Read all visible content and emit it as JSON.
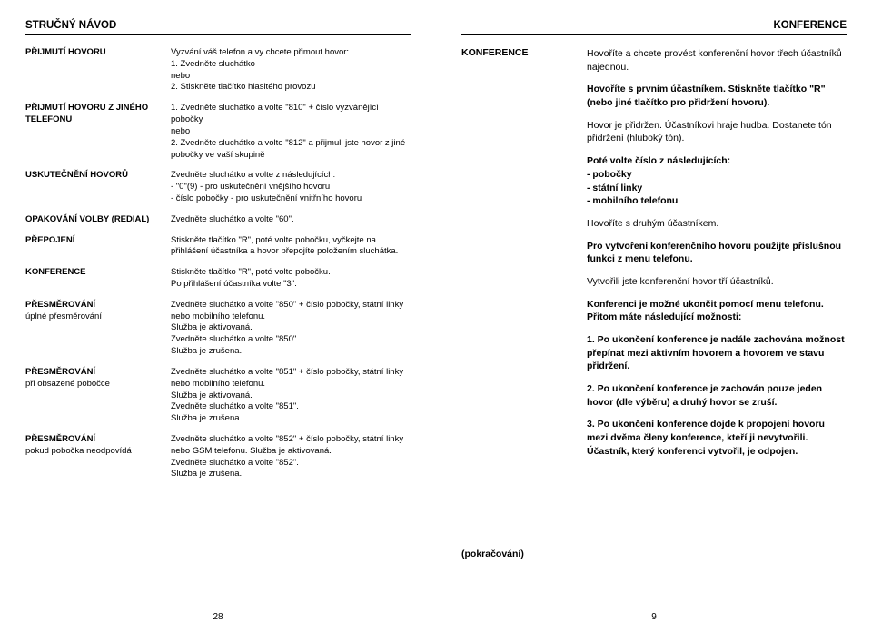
{
  "left": {
    "header": "STRUČNÝ NÁVOD",
    "rows": [
      {
        "label": "PŘIJMUTÍ HOVORU",
        "sub": "",
        "content": "Vyzvání váš telefon a vy chcete přimout hovor:\n1. Zvedněte sluchátko\nnebo\n2. Stiskněte tlačítko hlasitého provozu"
      },
      {
        "label": "PŘIJMUTÍ HOVORU Z JINÉHO TELEFONU",
        "sub": "",
        "content": "1. Zvedněte sluchátko a volte \"810\" + číslo vyzvánějící pobočky\nnebo\n2. Zvedněte sluchátko a volte \"812\" a přijmuli jste hovor z jiné pobočky ve vaší skupině"
      },
      {
        "label": "USKUTEČNĚNÍ HOVORŮ",
        "sub": "",
        "content": "Zvedněte sluchátko a volte z následujících:\n- \"0\"(9) - pro uskutečnění vnějšího hovoru\n- číslo pobočky - pro uskutečnění vnitřního hovoru"
      },
      {
        "label": "OPAKOVÁNÍ VOLBY (REDIAL)",
        "sub": "",
        "content": "Zvedněte sluchátko a volte \"60\"."
      },
      {
        "label": "PŘEPOJENÍ",
        "sub": "",
        "content": "Stiskněte tlačítko \"R\", poté volte pobočku, vyčkejte na přihlášení účastníka a hovor přepojíte položením sluchátka."
      },
      {
        "label": "KONFERENCE",
        "sub": "",
        "content": "Stiskněte tlačítko \"R\", poté volte pobočku.\nPo přihlášení účastníka volte \"3\"."
      },
      {
        "label": "PŘESMĚROVÁNÍ",
        "sub": "úplné přesměrování",
        "content": "Zvedněte sluchátko a volte \"850\" + číslo pobočky, státní linky nebo mobilního telefonu.\nSlužba je aktivovaná.\nZvedněte sluchátko a volte \"850\".\nSlužba je zrušena."
      },
      {
        "label": "PŘESMĚROVÁNÍ",
        "sub": "při obsazené pobočce",
        "content": "Zvedněte sluchátko a volte \"851\" + číslo pobočky, státní linky nebo mobilního telefonu.\nSlužba je aktivovaná.\nZvedněte sluchátko a volte \"851\".\nSlužba je zrušena."
      },
      {
        "label": "PŘESMĚROVÁNÍ",
        "sub": "pokud pobočka neodpovídá",
        "content": "Zvedněte sluchátko a volte \"852\" + číslo pobočky, státní linky nebo GSM telefonu. Služba je aktivovaná.\nZvedněte sluchátko a volte \"852\".\nSlužba je zrušena."
      }
    ],
    "pagenum": "28"
  },
  "right": {
    "header": "KONFERENCE",
    "section_label": "KONFERENCE",
    "paras": [
      {
        "text": "Hovoříte a chcete provést konferenční hovor třech účastníků najednou.",
        "bold": false
      },
      {
        "text": "Hovoříte s prvním účastníkem. Stiskněte tlačítko \"R\" (nebo jiné tlačítko pro přidržení hovoru).",
        "bold": true
      },
      {
        "text": "Hovor je přidržen. Účastníkovi hraje hudba. Dostanete tón přidržení (hluboký tón).",
        "bold": false
      },
      {
        "text": "Poté volte číslo z následujících:\n- pobočky\n- státní linky\n- mobilního telefonu",
        "bold": true
      },
      {
        "text": "Hovoříte s druhým účastníkem.",
        "bold": false
      },
      {
        "text": "Pro vytvoření konferenčního hovoru použijte příslušnou funkci z menu telefonu.",
        "bold": true
      },
      {
        "text": "Vytvořili jste konferenční hovor tří účastníků.",
        "bold": false
      },
      {
        "text": "Konferenci je možné ukončit pomocí menu telefonu. Přitom máte následující možnosti:",
        "bold": true
      },
      {
        "text": "1. Po ukončení konference je nadále zachována možnost přepínat mezi aktivním hovorem a hovorem ve stavu přidržení.",
        "bold": true
      },
      {
        "text": "2. Po ukončení konference je zachován pouze jeden hovor (dle výběru) a druhý hovor se zruší.",
        "bold": true
      },
      {
        "text": "3. Po ukončení konference dojde k propojení hovoru mezi dvěma členy konference, kteří ji nevytvořili. Účastník, který konferenci vytvořil, je odpojen.",
        "bold": true
      }
    ],
    "continuation": "(pokračování)",
    "pagenum": "9"
  }
}
